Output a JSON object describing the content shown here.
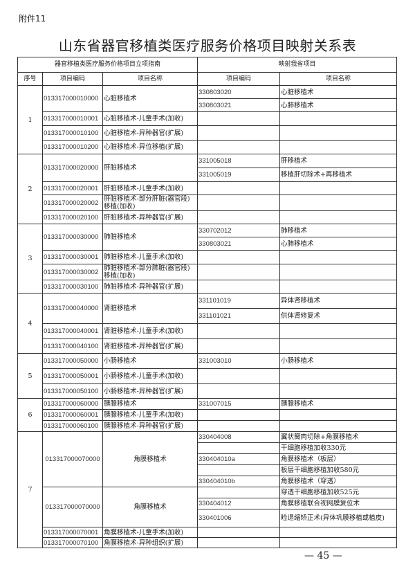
{
  "attachment": "附件11",
  "title": "山东省器官移植类医疗服务价格项目映射关系表",
  "header": {
    "left_group": "器官移植类医疗服务价格项目立项指南",
    "right_group": "映射我省项目",
    "cols": [
      "序号",
      "项目编码",
      "项目名称",
      "项目编码",
      "项目名称"
    ]
  },
  "sections": [
    {
      "seq": "1",
      "groups": [
        {
          "code": "013317000010000",
          "name": "心脏移植术",
          "mappings": [
            {
              "code": "330803020",
              "name": "心脏移植术"
            },
            {
              "code": "330803021",
              "name": "心肺移植术"
            }
          ]
        },
        {
          "code": "013317000010001",
          "name": "心脏移植术-儿童手术(加收)",
          "mappings": []
        },
        {
          "code": "013317000010100",
          "name": "心脏移植术-异种器官(扩展)",
          "mappings": []
        },
        {
          "code": "013317000010200",
          "name": "心脏移植术-异位移植(扩展)",
          "mappings": []
        }
      ]
    },
    {
      "seq": "2",
      "groups": [
        {
          "code": "013317000020000",
          "name": "肝脏移植术",
          "mappings": [
            {
              "code": "331005018",
              "name": "肝移植术"
            },
            {
              "code": "331005019",
              "name": "移植肝切除术+再移植术"
            }
          ]
        },
        {
          "code": "013317000020001",
          "name": "肝脏移植术-儿童手术(加收)",
          "mappings": []
        },
        {
          "code": "013317000020002",
          "name": "肝脏移植术-部分肝脏(器官段)移植(加收)",
          "mappings": []
        },
        {
          "code": "013317000020100",
          "name": "肝脏移植术-异种器官(扩展)",
          "mappings": []
        }
      ]
    },
    {
      "seq": "3",
      "groups": [
        {
          "code": "013317000030000",
          "name": "肺脏移植术",
          "mappings": [
            {
              "code": "330702012",
              "name": "肺移植术"
            },
            {
              "code": "330803021",
              "name": "心肺移植术"
            }
          ]
        },
        {
          "code": "013317000030001",
          "name": "肺脏移植术-儿童手术(加收)",
          "mappings": []
        },
        {
          "code": "013317000030002",
          "name": "肺脏移植术-部分肺脏(器官段)移植(加收)",
          "mappings": []
        },
        {
          "code": "013317000030100",
          "name": "肺脏移植术-异种器官(扩展)",
          "mappings": []
        }
      ]
    },
    {
      "seq": "4",
      "groups": [
        {
          "code": "013317000040000",
          "name": "肾脏移植术",
          "mappings": [
            {
              "code": "331101019",
              "name": "异体肾移植术"
            },
            {
              "code": "331101021",
              "name": "供体肾修复术"
            }
          ]
        },
        {
          "code": "013317000040001",
          "name": "肾脏移植术-儿童手术(加收)",
          "mappings": []
        },
        {
          "code": "013317000040100",
          "name": "肾脏移植术-异种器官(扩展)",
          "mappings": []
        }
      ]
    },
    {
      "seq": "5",
      "groups": [
        {
          "code": "013317000050000",
          "name": "小肠移植术",
          "mappings": [
            {
              "code": "331003010",
              "name": "小肠移植术"
            }
          ]
        },
        {
          "code": "013317000050001",
          "name": "小肠移植术-儿童手术(加收)",
          "mappings": []
        },
        {
          "code": "013317000050100",
          "name": "小肠移植术-异种器官(扩展)",
          "mappings": []
        }
      ]
    },
    {
      "seq": "6",
      "groups": [
        {
          "code": "013317000060000",
          "name": "胰腺移植术",
          "mappings": [
            {
              "code": "331007015",
              "name": "胰腺移植术"
            }
          ]
        },
        {
          "code": "013317000060001",
          "name": "胰腺移植术-儿童手术(加收)",
          "mappings": []
        },
        {
          "code": "013317000060100",
          "name": "胰腺移植术-异种器官(扩展)",
          "mappings": []
        }
      ]
    },
    {
      "seq": "7",
      "groups": [
        {
          "code": "013317000070000",
          "name": "角膜移植术",
          "centered": true,
          "mappings": [
            {
              "code": "330404008",
              "name": "翼状胬肉切除+角膜移植术"
            },
            {
              "code": "",
              "name": "干细胞移植加收330元"
            },
            {
              "code": "330404010a",
              "name": "角膜移植术（板层）"
            },
            {
              "code": "",
              "name": "板层干细胞移植加收580元"
            },
            {
              "code": "330404010b",
              "name": "角膜移植术（穿透）"
            }
          ]
        },
        {
          "code": "013317000070000",
          "name": "角膜移植术",
          "centered": true,
          "mappings": [
            {
              "code": "",
              "name": "穿透干细胞移植加收525元"
            },
            {
              "code": "330404012",
              "name": "角膜移植联合视网膜复位术"
            },
            {
              "code": "330401006",
              "name": "睑退缩矫正术(异体巩膜移植或植皮)"
            }
          ]
        },
        {
          "code": "013317000070001",
          "name": "角膜移植术-儿童手术(加收)",
          "mappings": []
        },
        {
          "code": "013317000070100",
          "name": "角膜移植术-异种组织(扩展)",
          "mappings": []
        }
      ]
    }
  ],
  "page_number": "— 45 —"
}
